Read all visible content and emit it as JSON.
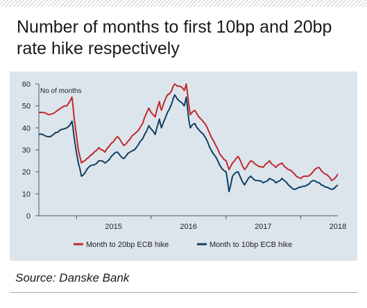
{
  "title": "Number of months to first 10bp and 20bp rate hike respectively",
  "source": "Source: Danske Bank",
  "colors": {
    "red": "#c0282d",
    "blue": "#0f3f63",
    "panel": "#dde5ec"
  },
  "chart_data": {
    "type": "line",
    "title": "Number of months to first 10bp and 20bp rate hike respectively",
    "ylabel": "No of months",
    "xlabel": "",
    "ylim": [
      0,
      60
    ],
    "yticks": [
      0,
      10,
      20,
      30,
      40,
      50,
      60
    ],
    "x_domain": [
      "2014-07-01",
      "2018-07-01"
    ],
    "x_tick_labels": [
      "2015",
      "2016",
      "2017",
      "2018"
    ],
    "grid": false,
    "legend_position": "bottom",
    "series": [
      {
        "name": "Month to 20bp ECB hike",
        "color": "#c0282d",
        "x": [
          "2014-07-01",
          "2014-08-15",
          "2014-10-01",
          "2014-11-15",
          "2014-12-10",
          "2014-12-20",
          "2015-01-10",
          "2015-01-25",
          "2015-02-20",
          "2015-03-20",
          "2015-04-20",
          "2015-05-20",
          "2015-06-20",
          "2015-07-20",
          "2015-08-20",
          "2015-09-20",
          "2015-10-20",
          "2015-11-20",
          "2015-12-20",
          "2016-01-20",
          "2016-02-10",
          "2016-02-20",
          "2016-03-20",
          "2016-04-10",
          "2016-04-25",
          "2016-05-20",
          "2016-06-10",
          "2016-06-20",
          "2016-07-01",
          "2016-07-10",
          "2016-08-01",
          "2016-09-01",
          "2016-10-01",
          "2016-11-01",
          "2016-12-01",
          "2017-01-01",
          "2017-01-15",
          "2017-02-01",
          "2017-03-01",
          "2017-04-01",
          "2017-05-01",
          "2017-06-01",
          "2017-07-01",
          "2017-08-01",
          "2017-09-01",
          "2017-10-01",
          "2017-11-01",
          "2017-12-01",
          "2018-01-01",
          "2018-02-01",
          "2018-03-01",
          "2018-04-01",
          "2018-05-01",
          "2018-06-01",
          "2018-07-01"
        ],
        "y": [
          47,
          46,
          48,
          50,
          54,
          45,
          30,
          24,
          26,
          28,
          31,
          29,
          33,
          36,
          32,
          35,
          38,
          42,
          49,
          45,
          52,
          48,
          55,
          57,
          60,
          59,
          57,
          60,
          52,
          46,
          48,
          44,
          40,
          34,
          28,
          25,
          21,
          24,
          27,
          21,
          25,
          23,
          22,
          25,
          22,
          24,
          21,
          19,
          17,
          18,
          20,
          22,
          19,
          16,
          19
        ]
      },
      {
        "name": "Month to 10bp ECB hike",
        "color": "#0f3f63",
        "x": [
          "2014-07-01",
          "2014-08-15",
          "2014-10-01",
          "2014-11-15",
          "2014-12-10",
          "2014-12-20",
          "2015-01-10",
          "2015-01-25",
          "2015-02-20",
          "2015-03-20",
          "2015-04-20",
          "2015-05-20",
          "2015-06-20",
          "2015-07-20",
          "2015-08-20",
          "2015-09-20",
          "2015-10-20",
          "2015-11-20",
          "2015-12-20",
          "2016-01-20",
          "2016-02-10",
          "2016-02-20",
          "2016-03-20",
          "2016-04-10",
          "2016-04-25",
          "2016-05-20",
          "2016-06-10",
          "2016-06-20",
          "2016-07-01",
          "2016-07-10",
          "2016-08-01",
          "2016-09-01",
          "2016-10-01",
          "2016-11-01",
          "2016-12-01",
          "2017-01-01",
          "2017-01-15",
          "2017-02-01",
          "2017-03-01",
          "2017-04-01",
          "2017-05-01",
          "2017-06-01",
          "2017-07-01",
          "2017-08-01",
          "2017-09-01",
          "2017-10-01",
          "2017-11-01",
          "2017-12-01",
          "2018-01-01",
          "2018-02-01",
          "2018-03-01",
          "2018-04-01",
          "2018-05-01",
          "2018-06-01",
          "2018-07-01"
        ],
        "y": [
          37,
          36,
          38,
          40,
          43,
          36,
          24,
          18,
          21,
          23,
          25,
          24,
          27,
          29,
          26,
          29,
          31,
          35,
          41,
          37,
          44,
          40,
          47,
          51,
          55,
          52,
          50,
          54,
          45,
          40,
          42,
          38,
          34,
          28,
          23,
          20,
          11,
          18,
          20,
          14,
          18,
          16,
          15,
          17,
          15,
          17,
          14,
          12,
          13,
          14,
          16,
          15,
          13,
          12,
          14
        ]
      }
    ]
  }
}
